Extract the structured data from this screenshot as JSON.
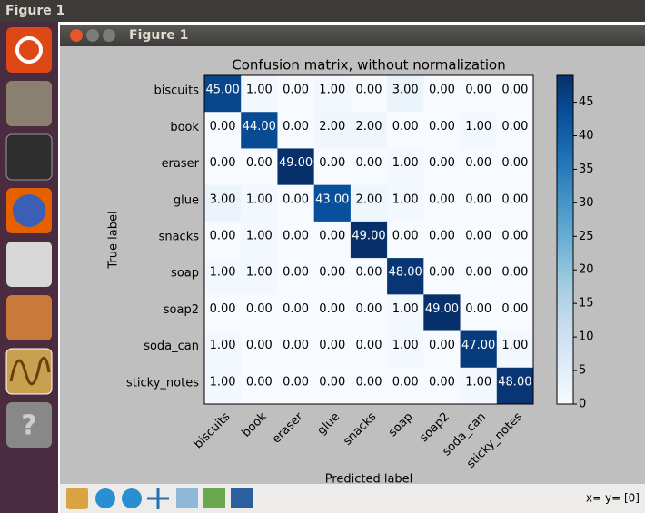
{
  "top_bar": {
    "title": "Figure 1"
  },
  "window": {
    "title": "Figure 1"
  },
  "status": "x= y= [0]",
  "chart_data": {
    "type": "heatmap",
    "title": "Confusion matrix, without normalization",
    "xlabel": "Predicted label",
    "ylabel": "True label",
    "categories": [
      "biscuits",
      "book",
      "eraser",
      "glue",
      "snacks",
      "soap",
      "soap2",
      "soda_can",
      "sticky_notes"
    ],
    "values": [
      [
        45,
        1,
        0,
        1,
        0,
        3,
        0,
        0,
        0
      ],
      [
        0,
        44,
        0,
        2,
        2,
        0,
        0,
        1,
        0
      ],
      [
        0,
        0,
        49,
        0,
        0,
        1,
        0,
        0,
        0
      ],
      [
        3,
        1,
        0,
        43,
        2,
        1,
        0,
        0,
        0
      ],
      [
        0,
        1,
        0,
        0,
        49,
        0,
        0,
        0,
        0
      ],
      [
        1,
        1,
        0,
        0,
        0,
        48,
        0,
        0,
        0
      ],
      [
        0,
        0,
        0,
        0,
        0,
        1,
        49,
        0,
        0
      ],
      [
        1,
        0,
        0,
        0,
        0,
        1,
        0,
        47,
        1
      ],
      [
        1,
        0,
        0,
        0,
        0,
        0,
        0,
        1,
        48
      ]
    ],
    "value_labels": [
      [
        "45.00",
        "1.00",
        "0.00",
        "1.00",
        "0.00",
        "3.00",
        "0.00",
        "0.00",
        "0.00"
      ],
      [
        "0.00",
        "44.00",
        "0.00",
        "2.00",
        "2.00",
        "0.00",
        "0.00",
        "1.00",
        "0.00"
      ],
      [
        "0.00",
        "0.00",
        "49.00",
        "0.00",
        "0.00",
        "1.00",
        "0.00",
        "0.00",
        "0.00"
      ],
      [
        "3.00",
        "1.00",
        "0.00",
        "43.00",
        "2.00",
        "1.00",
        "0.00",
        "0.00",
        "0.00"
      ],
      [
        "0.00",
        "1.00",
        "0.00",
        "0.00",
        "49.00",
        "0.00",
        "0.00",
        "0.00",
        "0.00"
      ],
      [
        "1.00",
        "1.00",
        "0.00",
        "0.00",
        "0.00",
        "48.00",
        "0.00",
        "0.00",
        "0.00"
      ],
      [
        "0.00",
        "0.00",
        "0.00",
        "0.00",
        "0.00",
        "1.00",
        "49.00",
        "0.00",
        "0.00"
      ],
      [
        "1.00",
        "0.00",
        "0.00",
        "0.00",
        "0.00",
        "1.00",
        "0.00",
        "47.00",
        "1.00"
      ],
      [
        "1.00",
        "0.00",
        "0.00",
        "0.00",
        "0.00",
        "0.00",
        "0.00",
        "1.00",
        "48.00"
      ]
    ],
    "colormap": [
      "#f7fbff",
      "#deebf7",
      "#c6dbef",
      "#9ecae1",
      "#6baed6",
      "#4292c6",
      "#2171b5",
      "#08519c",
      "#08306b"
    ],
    "clim": [
      0,
      49
    ],
    "cticks": [
      0,
      5,
      10,
      15,
      20,
      25,
      30,
      35,
      40,
      45
    ]
  }
}
